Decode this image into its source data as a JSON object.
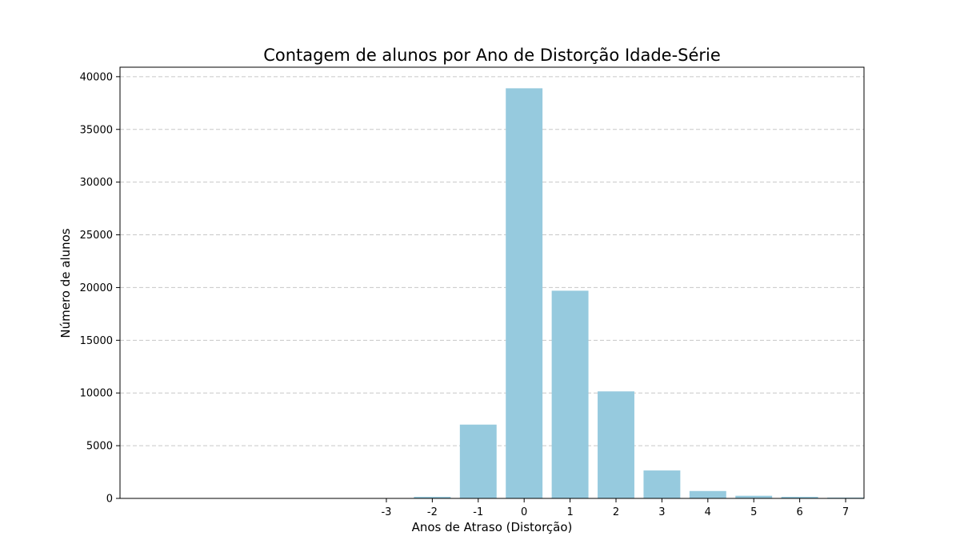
{
  "chart_data": {
    "type": "bar",
    "title": "Contagem de alunos por Ano de Distorção Idade-Série",
    "xlabel": "Anos de Atraso (Distorção)",
    "ylabel": "Número de alunos",
    "categories": [
      "-3",
      "-2",
      "-1",
      "0",
      "1",
      "2",
      "3",
      "4",
      "5",
      "6",
      "7"
    ],
    "x": [
      -3,
      -2,
      -1,
      0,
      1,
      2,
      3,
      4,
      5,
      6,
      7
    ],
    "values": [
      20,
      150,
      7000,
      38900,
      19700,
      10150,
      2650,
      700,
      250,
      150,
      80
    ],
    "xlim": [
      -8.8,
      7.4
    ],
    "ylim": [
      0,
      40900
    ],
    "yticks": [
      0,
      5000,
      10000,
      15000,
      20000,
      25000,
      30000,
      35000,
      40000
    ],
    "grid": "y-dashed",
    "legend": "none",
    "colors": {
      "bar": "#96cade",
      "grid": "#c8c8c8",
      "axes": "#000000"
    }
  }
}
